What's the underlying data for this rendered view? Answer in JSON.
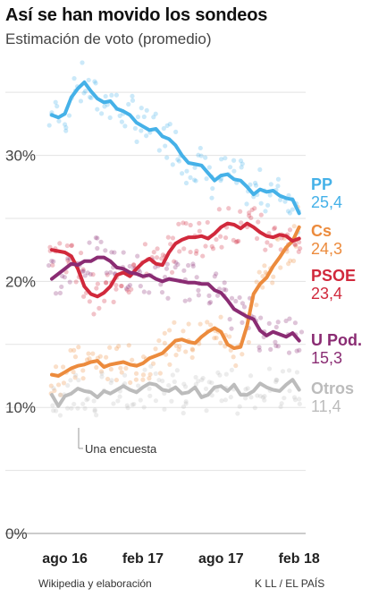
{
  "chart_data": {
    "type": "line",
    "title": "Así se han movido los sondeos",
    "subtitle": "Estimación de voto (promedio)",
    "ylim": [
      0,
      37
    ],
    "yticks": [
      {
        "value": 0,
        "label": "0%"
      },
      {
        "value": 10,
        "label": "10%"
      },
      {
        "value": 20,
        "label": "20%"
      },
      {
        "value": 30,
        "label": "30%"
      }
    ],
    "xlim": [
      0,
      19.5
    ],
    "xticks": [
      {
        "value": 1,
        "label": "ago 16"
      },
      {
        "value": 7,
        "label": "feb 17"
      },
      {
        "value": 13,
        "label": "ago 17"
      },
      {
        "value": 19,
        "label": "feb 18"
      }
    ],
    "grid": true,
    "annotation": "Una encuesta",
    "series": [
      {
        "name": "PP",
        "value_label": "25,4",
        "color": "#45b1e8",
        "points": [
          [
            0,
            33.2
          ],
          [
            0.5,
            33.0
          ],
          [
            1,
            33.3
          ],
          [
            1.5,
            34.6
          ],
          [
            2,
            35.3
          ],
          [
            2.5,
            35.8
          ],
          [
            3,
            35.1
          ],
          [
            3.5,
            34.5
          ],
          [
            4,
            34.2
          ],
          [
            4.5,
            34.3
          ],
          [
            5,
            33.7
          ],
          [
            5.5,
            33.5
          ],
          [
            6,
            33.2
          ],
          [
            6.5,
            32.6
          ],
          [
            7,
            32.3
          ],
          [
            7.5,
            32.0
          ],
          [
            8,
            32.1
          ],
          [
            8.5,
            31.5
          ],
          [
            9,
            31.3
          ],
          [
            9.5,
            30.8
          ],
          [
            10,
            30.0
          ],
          [
            10.5,
            29.4
          ],
          [
            11,
            29.3
          ],
          [
            11.5,
            29.2
          ],
          [
            12,
            28.6
          ],
          [
            12.5,
            28.0
          ],
          [
            13,
            28.4
          ],
          [
            13.5,
            28.5
          ],
          [
            14,
            28.1
          ],
          [
            14.5,
            28.0
          ],
          [
            15,
            27.5
          ],
          [
            15.5,
            26.9
          ],
          [
            16,
            27.3
          ],
          [
            16.5,
            27.1
          ],
          [
            17,
            27.2
          ],
          [
            17.5,
            26.8
          ],
          [
            18,
            26.6
          ],
          [
            18.5,
            26.5
          ],
          [
            19,
            25.4
          ]
        ]
      },
      {
        "name": "Cs",
        "value_label": "24,3",
        "color": "#ec8b3d",
        "points": [
          [
            0,
            12.6
          ],
          [
            0.5,
            12.5
          ],
          [
            1,
            12.8
          ],
          [
            1.5,
            13.1
          ],
          [
            2,
            13.3
          ],
          [
            2.5,
            13.4
          ],
          [
            3,
            13.6
          ],
          [
            3.5,
            13.7
          ],
          [
            4,
            13.2
          ],
          [
            4.5,
            13.4
          ],
          [
            5,
            13.5
          ],
          [
            5.5,
            13.6
          ],
          [
            6,
            13.4
          ],
          [
            6.5,
            13.3
          ],
          [
            7,
            13.5
          ],
          [
            7.5,
            13.9
          ],
          [
            8,
            14.1
          ],
          [
            8.5,
            14.3
          ],
          [
            9,
            14.8
          ],
          [
            9.5,
            15.3
          ],
          [
            10,
            15.4
          ],
          [
            10.5,
            15.2
          ],
          [
            11,
            15.1
          ],
          [
            11.5,
            15.6
          ],
          [
            12,
            16.0
          ],
          [
            12.5,
            16.3
          ],
          [
            13,
            16.0
          ],
          [
            13.5,
            15.0
          ],
          [
            14,
            14.7
          ],
          [
            14.5,
            14.8
          ],
          [
            15,
            16.5
          ],
          [
            15.5,
            19.0
          ],
          [
            16,
            19.8
          ],
          [
            16.5,
            20.3
          ],
          [
            17,
            21.2
          ],
          [
            17.5,
            21.9
          ],
          [
            18,
            22.7
          ],
          [
            18.5,
            23.2
          ],
          [
            19,
            24.3
          ]
        ]
      },
      {
        "name": "PSOE",
        "value_label": "23,4",
        "color": "#d1293c",
        "points": [
          [
            0,
            22.5
          ],
          [
            0.5,
            22.4
          ],
          [
            1,
            22.3
          ],
          [
            1.5,
            22.0
          ],
          [
            2,
            21.0
          ],
          [
            2.5,
            19.6
          ],
          [
            3,
            19.0
          ],
          [
            3.5,
            18.8
          ],
          [
            4,
            19.1
          ],
          [
            4.5,
            19.6
          ],
          [
            5,
            20.5
          ],
          [
            5.5,
            20.7
          ],
          [
            6,
            20.4
          ],
          [
            6.5,
            21.0
          ],
          [
            7,
            21.5
          ],
          [
            7.5,
            21.8
          ],
          [
            8,
            21.4
          ],
          [
            8.5,
            21.3
          ],
          [
            9,
            22.3
          ],
          [
            9.5,
            23.0
          ],
          [
            10,
            23.3
          ],
          [
            10.5,
            23.5
          ],
          [
            11,
            23.5
          ],
          [
            11.5,
            23.6
          ],
          [
            12,
            23.4
          ],
          [
            12.5,
            23.8
          ],
          [
            13,
            24.3
          ],
          [
            13.5,
            24.6
          ],
          [
            14,
            24.5
          ],
          [
            14.5,
            24.2
          ],
          [
            15,
            24.6
          ],
          [
            15.5,
            24.3
          ],
          [
            16,
            23.9
          ],
          [
            16.5,
            23.6
          ],
          [
            17,
            23.5
          ],
          [
            17.5,
            23.7
          ],
          [
            18,
            23.6
          ],
          [
            18.5,
            23.2
          ],
          [
            19,
            23.4
          ]
        ]
      },
      {
        "name": "U Pod.",
        "value_label": "15,3",
        "color": "#8a2c73",
        "points": [
          [
            0,
            20.2
          ],
          [
            0.5,
            20.6
          ],
          [
            1,
            21.0
          ],
          [
            1.5,
            21.4
          ],
          [
            2,
            21.3
          ],
          [
            2.5,
            21.6
          ],
          [
            3,
            21.6
          ],
          [
            3.5,
            21.9
          ],
          [
            4,
            21.9
          ],
          [
            4.5,
            21.6
          ],
          [
            5,
            21.1
          ],
          [
            5.5,
            21.0
          ],
          [
            6,
            20.7
          ],
          [
            6.5,
            20.6
          ],
          [
            7,
            20.4
          ],
          [
            7.5,
            20.5
          ],
          [
            8,
            20.2
          ],
          [
            8.5,
            20.0
          ],
          [
            9,
            20.2
          ],
          [
            9.5,
            20.1
          ],
          [
            10,
            20.0
          ],
          [
            10.5,
            19.9
          ],
          [
            11,
            19.9
          ],
          [
            11.5,
            19.8
          ],
          [
            12,
            19.8
          ],
          [
            12.5,
            19.3
          ],
          [
            13,
            19.1
          ],
          [
            13.5,
            18.5
          ],
          [
            14,
            17.8
          ],
          [
            14.5,
            17.5
          ],
          [
            15,
            17.2
          ],
          [
            15.5,
            17.0
          ],
          [
            16,
            16.1
          ],
          [
            16.5,
            15.7
          ],
          [
            17,
            16.0
          ],
          [
            17.5,
            15.8
          ],
          [
            18,
            15.6
          ],
          [
            18.5,
            15.9
          ],
          [
            19,
            15.3
          ]
        ]
      },
      {
        "name": "Otros",
        "value_label": "11,4",
        "color": "#bcbcbc",
        "points": [
          [
            0,
            11.0
          ],
          [
            0.5,
            10.1
          ],
          [
            1,
            10.9
          ],
          [
            1.5,
            11.1
          ],
          [
            2,
            11.5
          ],
          [
            2.5,
            11.3
          ],
          [
            3,
            11.2
          ],
          [
            3.5,
            10.8
          ],
          [
            4,
            11.3
          ],
          [
            4.5,
            11.1
          ],
          [
            5,
            11.4
          ],
          [
            5.5,
            11.7
          ],
          [
            6,
            11.4
          ],
          [
            6.5,
            11.2
          ],
          [
            7,
            11.6
          ],
          [
            7.5,
            11.9
          ],
          [
            8,
            11.8
          ],
          [
            8.5,
            11.4
          ],
          [
            9,
            11.3
          ],
          [
            9.5,
            11.6
          ],
          [
            10,
            11.1
          ],
          [
            10.5,
            11.2
          ],
          [
            11,
            11.6
          ],
          [
            11.5,
            10.8
          ],
          [
            12,
            11.0
          ],
          [
            12.5,
            11.6
          ],
          [
            13,
            11.7
          ],
          [
            13.5,
            11.3
          ],
          [
            14,
            11.8
          ],
          [
            14.5,
            11.0
          ],
          [
            15,
            11.0
          ],
          [
            15.5,
            11.3
          ],
          [
            16,
            11.9
          ],
          [
            16.5,
            11.6
          ],
          [
            17,
            11.4
          ],
          [
            17.5,
            11.3
          ],
          [
            18,
            11.8
          ],
          [
            18.5,
            12.2
          ],
          [
            19,
            11.4
          ]
        ]
      }
    ]
  },
  "footer": {
    "source": "Wikipedia y elaboración",
    "credit": "K LL / EL PAÍS"
  }
}
